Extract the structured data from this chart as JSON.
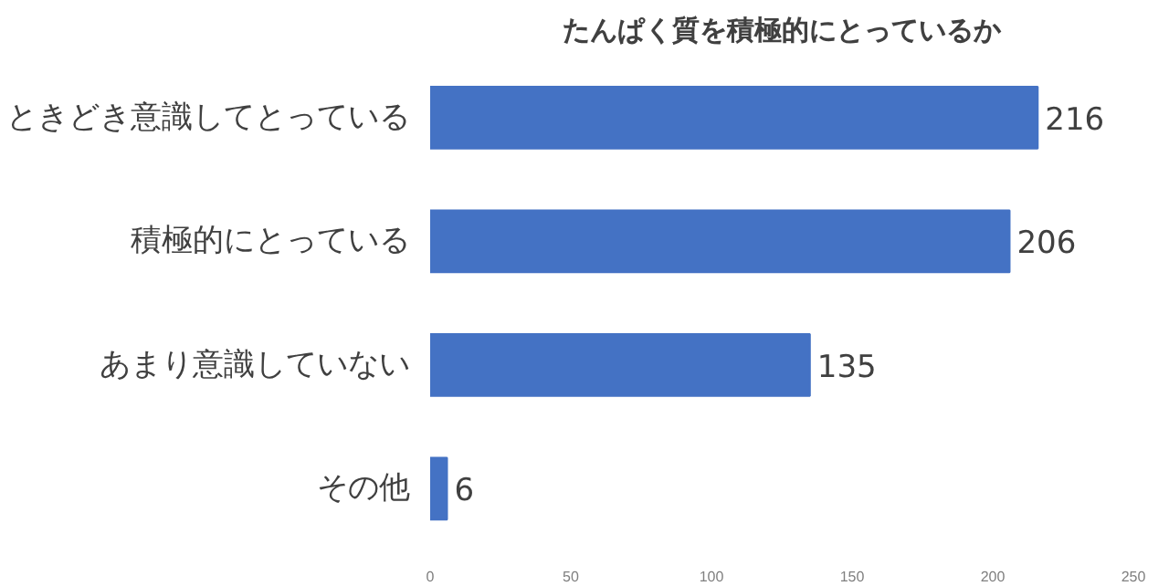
{
  "chart_data": {
    "type": "bar",
    "orientation": "horizontal",
    "title": "たんぱく質を積極的にとっているか",
    "categories": [
      "ときどき意識してとっている",
      "積極的にとっている",
      "あまり意識していない",
      "その他"
    ],
    "values": [
      216,
      206,
      135,
      6
    ],
    "color": "#4472c4",
    "xlim": [
      0,
      250
    ],
    "xticks": [
      0,
      50,
      100,
      150,
      200,
      250
    ],
    "grid": false,
    "data_labels": true
  }
}
